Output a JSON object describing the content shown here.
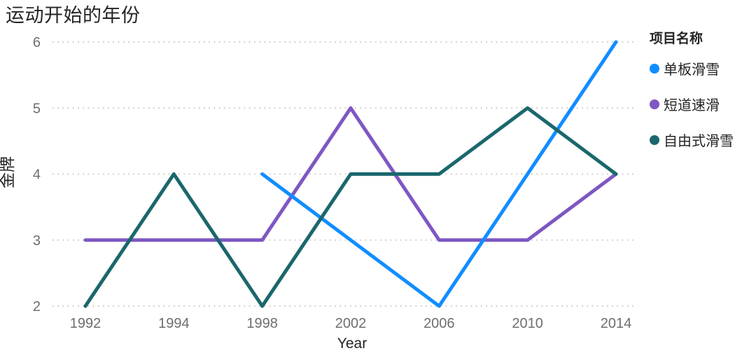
{
  "chart_data": {
    "type": "line",
    "title": "运动开始的年份",
    "xlabel": "Year",
    "ylabel": "金牌",
    "ylim": [
      2,
      6
    ],
    "yticks": [
      2,
      3,
      4,
      5,
      6
    ],
    "categories": [
      "1992",
      "1994",
      "1998",
      "2002",
      "2006",
      "2010",
      "2014"
    ],
    "grid": "horizontal-dotted",
    "legend_position": "right",
    "legend_title": "项目名称",
    "series": [
      {
        "name": "单板滑雪",
        "color": "#118DFF",
        "values": [
          null,
          null,
          4,
          3,
          2,
          4,
          6
        ]
      },
      {
        "name": "短道速滑",
        "color": "#7E57C2",
        "values": [
          3,
          3,
          3,
          5,
          3,
          3,
          4
        ]
      },
      {
        "name": "自由式滑雪",
        "color": "#1A676D",
        "values": [
          2,
          4,
          2,
          4,
          4,
          5,
          4
        ]
      }
    ],
    "colors": {
      "gridline": "#C9C7C5",
      "tick_label": "#6E6E6E",
      "text": "#252423"
    }
  }
}
